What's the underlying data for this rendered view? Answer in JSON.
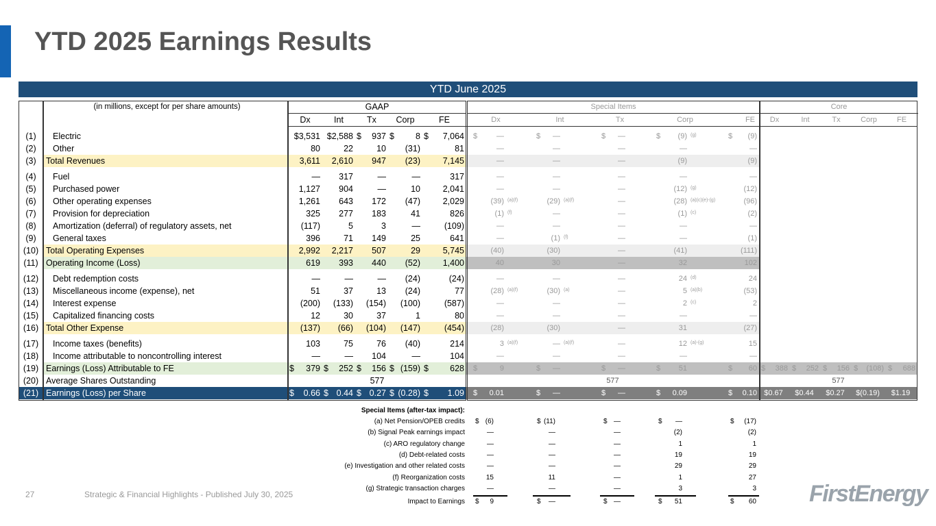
{
  "title": "YTD 2025 Earnings Results",
  "banner": "YTD June 2025",
  "header": {
    "label": "(in millions, except for per share amounts)",
    "gaap": "GAAP",
    "special": "Special Items",
    "core": "Core",
    "cols": [
      "Dx",
      "Int",
      "Tx",
      "Corp",
      "FE"
    ]
  },
  "colors": {
    "accent": "#1464b4",
    "banner": "#1f4e79",
    "yellow": "#fdf2c4",
    "green": "#e2efd9",
    "gray": "#bfbfbf",
    "dark_gray": "#7f7f7f"
  },
  "rows": [
    {
      "num": "(1)",
      "label": "Electric",
      "ind": true,
      "style": "",
      "gaap": [
        "$3,531",
        "$2,588",
        "$ 937",
        "$ 8",
        "$ 7,064"
      ],
      "special": [
        [
          "$",
          "—",
          ""
        ],
        [
          "$",
          "—",
          ""
        ],
        [
          "$",
          "—",
          ""
        ],
        [
          "$",
          "(9)",
          "(g)"
        ],
        [
          "$",
          "(9)",
          ""
        ]
      ]
    },
    {
      "num": "(2)",
      "label": "Other",
      "ind": true,
      "style": "",
      "gaap": [
        "80",
        "22",
        "10",
        "(31)",
        "81"
      ],
      "special": [
        [
          "",
          "—",
          ""
        ],
        [
          "",
          "—",
          ""
        ],
        [
          "",
          "—",
          ""
        ],
        [
          "",
          "—",
          ""
        ],
        [
          "",
          "—",
          ""
        ]
      ]
    },
    {
      "num": "(3)",
      "label": "Total Revenues",
      "style": "y",
      "gaap": [
        "3,611",
        "2,610",
        "947",
        "(23)",
        "7,145"
      ],
      "special": [
        [
          "",
          "—",
          ""
        ],
        [
          "",
          "—",
          ""
        ],
        [
          "",
          "—",
          ""
        ],
        [
          "",
          "(9)",
          ""
        ],
        [
          "",
          "(9)",
          ""
        ]
      ],
      "gapAfter": true
    },
    {
      "num": "(4)",
      "label": "Fuel",
      "ind": true,
      "style": "",
      "gaap": [
        "—",
        "317",
        "—",
        "—",
        "317"
      ],
      "special": [
        [
          "",
          "—",
          ""
        ],
        [
          "",
          "—",
          ""
        ],
        [
          "",
          "—",
          ""
        ],
        [
          "",
          "—",
          ""
        ],
        [
          "",
          "—",
          ""
        ]
      ]
    },
    {
      "num": "(5)",
      "label": "Purchased power",
      "ind": true,
      "style": "",
      "gaap": [
        "1,127",
        "904",
        "—",
        "10",
        "2,041"
      ],
      "special": [
        [
          "",
          "—",
          ""
        ],
        [
          "",
          "—",
          ""
        ],
        [
          "",
          "—",
          ""
        ],
        [
          "",
          "(12)",
          "(g)"
        ],
        [
          "",
          "(12)",
          ""
        ]
      ]
    },
    {
      "num": "(6)",
      "label": "Other operating expenses",
      "ind": true,
      "style": "",
      "gaap": [
        "1,261",
        "643",
        "172",
        "(47)",
        "2,029"
      ],
      "special": [
        [
          "",
          "(39)",
          "(a)(f)"
        ],
        [
          "",
          "(29)",
          "(a)(f)"
        ],
        [
          "",
          "—",
          ""
        ],
        [
          "",
          "(28)",
          "(a)(c)(e)-(g)"
        ],
        [
          "",
          "(96)",
          ""
        ]
      ]
    },
    {
      "num": "(7)",
      "label": "Provision for depreciation",
      "ind": true,
      "style": "",
      "gaap": [
        "325",
        "277",
        "183",
        "41",
        "826"
      ],
      "special": [
        [
          "",
          "(1)",
          "(f)"
        ],
        [
          "",
          "—",
          ""
        ],
        [
          "",
          "—",
          ""
        ],
        [
          "",
          "(1)",
          "(c)"
        ],
        [
          "",
          "(2)",
          ""
        ]
      ]
    },
    {
      "num": "(8)",
      "label": "Amortization (deferral) of regulatory assets, net",
      "ind": true,
      "style": "",
      "gaap": [
        "(117)",
        "5",
        "3",
        "—",
        "(109)"
      ],
      "special": [
        [
          "",
          "—",
          ""
        ],
        [
          "",
          "—",
          ""
        ],
        [
          "",
          "—",
          ""
        ],
        [
          "",
          "—",
          ""
        ],
        [
          "",
          "—",
          ""
        ]
      ]
    },
    {
      "num": "(9)",
      "label": "General taxes",
      "ind": true,
      "style": "",
      "gaap": [
        "396",
        "71",
        "149",
        "25",
        "641"
      ],
      "special": [
        [
          "",
          "—",
          ""
        ],
        [
          "",
          "(1)",
          "(f)"
        ],
        [
          "",
          "—",
          ""
        ],
        [
          "",
          "—",
          ""
        ],
        [
          "",
          "(1)",
          ""
        ]
      ]
    },
    {
      "num": "(10)",
      "label": "Total Operating Expenses",
      "style": "y",
      "gaap": [
        "2,992",
        "2,217",
        "507",
        "29",
        "5,745"
      ],
      "special": [
        [
          "",
          "(40)",
          ""
        ],
        [
          "",
          "(30)",
          ""
        ],
        [
          "",
          "—",
          ""
        ],
        [
          "",
          "(41)",
          ""
        ],
        [
          "",
          "(111)",
          ""
        ]
      ]
    },
    {
      "num": "(11)",
      "label": "Operating Income (Loss)",
      "style": "g",
      "gaap": [
        "619",
        "393",
        "440",
        "(52)",
        "1,400"
      ],
      "special": [
        [
          "",
          "40",
          ""
        ],
        [
          "",
          "30",
          ""
        ],
        [
          "",
          "—",
          ""
        ],
        [
          "",
          "32",
          ""
        ],
        [
          "",
          "102",
          ""
        ]
      ],
      "gapAfter": true
    },
    {
      "num": "(12)",
      "label": "Debt redemption costs",
      "ind": true,
      "style": "",
      "gaap": [
        "—",
        "—",
        "—",
        "(24)",
        "(24)"
      ],
      "special": [
        [
          "",
          "—",
          ""
        ],
        [
          "",
          "—",
          ""
        ],
        [
          "",
          "—",
          ""
        ],
        [
          "",
          "24",
          "(d)"
        ],
        [
          "",
          "24",
          ""
        ]
      ]
    },
    {
      "num": "(13)",
      "label": "Miscellaneous income (expense), net",
      "ind": true,
      "style": "",
      "gaap": [
        "51",
        "37",
        "13",
        "(24)",
        "77"
      ],
      "special": [
        [
          "",
          "(28)",
          "(a)(f)"
        ],
        [
          "",
          "(30)",
          "(a)"
        ],
        [
          "",
          "—",
          ""
        ],
        [
          "",
          "5",
          "(a)(b)"
        ],
        [
          "",
          "(53)",
          ""
        ]
      ]
    },
    {
      "num": "(14)",
      "label": "Interest expense",
      "ind": true,
      "style": "",
      "gaap": [
        "(200)",
        "(133)",
        "(154)",
        "(100)",
        "(587)"
      ],
      "special": [
        [
          "",
          "—",
          ""
        ],
        [
          "",
          "—",
          ""
        ],
        [
          "",
          "—",
          ""
        ],
        [
          "",
          "2",
          "(c)"
        ],
        [
          "",
          "2",
          ""
        ]
      ]
    },
    {
      "num": "(15)",
      "label": "Capitalized financing costs",
      "ind": true,
      "style": "",
      "gaap": [
        "12",
        "30",
        "37",
        "1",
        "80"
      ],
      "special": [
        [
          "",
          "—",
          ""
        ],
        [
          "",
          "—",
          ""
        ],
        [
          "",
          "—",
          ""
        ],
        [
          "",
          "—",
          ""
        ],
        [
          "",
          "—",
          ""
        ]
      ]
    },
    {
      "num": "(16)",
      "label": "Total Other Expense",
      "style": "y",
      "gaap": [
        "(137)",
        "(66)",
        "(104)",
        "(147)",
        "(454)"
      ],
      "special": [
        [
          "",
          "(28)",
          ""
        ],
        [
          "",
          "(30)",
          ""
        ],
        [
          "",
          "—",
          ""
        ],
        [
          "",
          "31",
          ""
        ],
        [
          "",
          "(27)",
          ""
        ]
      ],
      "gapAfter": true
    },
    {
      "num": "(17)",
      "label": "Income taxes (benefits)",
      "ind": true,
      "style": "",
      "gaap": [
        "103",
        "75",
        "76",
        "(40)",
        "214"
      ],
      "special": [
        [
          "",
          "3",
          "(a)(f)"
        ],
        [
          "",
          "—",
          "(a)(f)"
        ],
        [
          "",
          "—",
          ""
        ],
        [
          "",
          "12",
          "(a)-(g)"
        ],
        [
          "",
          "15",
          ""
        ]
      ]
    },
    {
      "num": "(18)",
      "label": "Income attributable to noncontrolling interest",
      "ind": true,
      "style": "",
      "gaap": [
        "—",
        "—",
        "104",
        "—",
        "104"
      ],
      "special": [
        [
          "",
          "—",
          ""
        ],
        [
          "",
          "—",
          ""
        ],
        [
          "",
          "—",
          ""
        ],
        [
          "",
          "—",
          ""
        ],
        [
          "",
          "—",
          ""
        ]
      ]
    },
    {
      "num": "(19)",
      "label": "Earnings (Loss) Attributable to FE",
      "style": "e",
      "gaap": [
        "$ 379",
        "$ 252",
        "$ 156",
        "$ (159)",
        "$ 628"
      ],
      "special": [
        [
          "$",
          "9",
          ""
        ],
        [
          "$",
          "—",
          ""
        ],
        [
          "$",
          "—",
          ""
        ],
        [
          "$",
          "51",
          ""
        ],
        [
          "$",
          "60",
          ""
        ]
      ],
      "core": [
        "$ 388",
        "$ 252",
        "$ 156",
        "$ (108)",
        "$ 688"
      ]
    },
    {
      "num": "(20)",
      "label": "Average Shares Outstanding",
      "style": "",
      "gaap_span": "577",
      "special_span": "577",
      "core_span": "577"
    },
    {
      "num": "(21)",
      "label": "Earnings (Loss) per Share",
      "style": "b",
      "gaap": [
        "$ 0.66",
        "$ 0.44",
        "$ 0.27",
        "$ (0.28)",
        "$ 1.09"
      ],
      "special": [
        [
          "$",
          "0.01",
          ""
        ],
        [
          "$",
          "—",
          ""
        ],
        [
          "$",
          "—",
          ""
        ],
        [
          "$",
          "0.09",
          ""
        ],
        [
          "$",
          "0.10",
          ""
        ]
      ],
      "core": [
        "$0.67",
        "$0.44",
        "$0.27",
        "$(0.19)",
        "$1.19"
      ]
    }
  ],
  "footnotes": {
    "heading": "Special Items (after-tax impact):",
    "items": [
      {
        "label": "(a) Net Pension/OPEB credits",
        "vals": [
          "(6)",
          "(11)",
          "—",
          "—",
          "(17)"
        ],
        "dollar": true
      },
      {
        "label": "(b) Signal Peak earnings impact",
        "vals": [
          "—",
          "—",
          "—",
          "(2)",
          "(2)"
        ]
      },
      {
        "label": "(c) ARO regulatory change",
        "vals": [
          "—",
          "—",
          "—",
          "1",
          "1"
        ]
      },
      {
        "label": "(d) Debt-related costs",
        "vals": [
          "—",
          "—",
          "—",
          "19",
          "19"
        ]
      },
      {
        "label": "(e) Investigation and other related costs",
        "vals": [
          "—",
          "—",
          "—",
          "29",
          "29"
        ]
      },
      {
        "label": "(f) Reorganization costs",
        "vals": [
          "15",
          "11",
          "—",
          "1",
          "27"
        ]
      },
      {
        "label": "(g) Strategic transaction charges",
        "vals": [
          "—",
          "—",
          "—",
          "3",
          "3"
        ]
      },
      {
        "label": "Impact to Earnings",
        "vals": [
          "9",
          "—",
          "—",
          "51",
          "60"
        ],
        "dollar": true,
        "total": true
      }
    ]
  },
  "footer": {
    "page": "27",
    "published": "Strategic & Financial Highlights - Published July 30, 2025",
    "logo": "FirstEnergy"
  }
}
